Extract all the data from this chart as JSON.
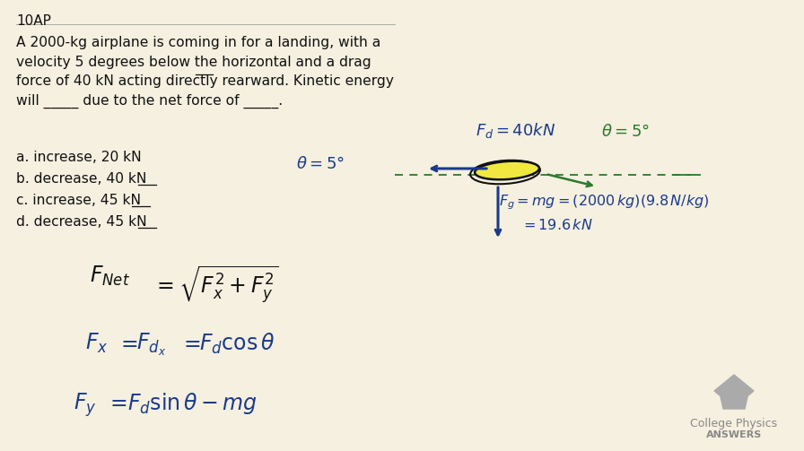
{
  "bg_color": "#f5f0e0",
  "title_text": "10AP",
  "problem_text": "A 2000-kg airplane is coming in for a landing, with a\nvelocity 5 degrees below the horizontal and a drag\nforce of 40 kN acting directly rearward. Kinetic energy\nwill _____ due to the net force of _____.",
  "answers": [
    "a. increase, 20 kN",
    "b. decrease, 40 kN",
    "c. increase, 45 kN",
    "d. decrease, 45 kN"
  ],
  "blue_color": "#1a3a8a",
  "green_color": "#2a7a2a",
  "gray_color": "#888888",
  "black_color": "#111111",
  "logo_text1": "College Physics",
  "logo_text2": "ANSWERS"
}
